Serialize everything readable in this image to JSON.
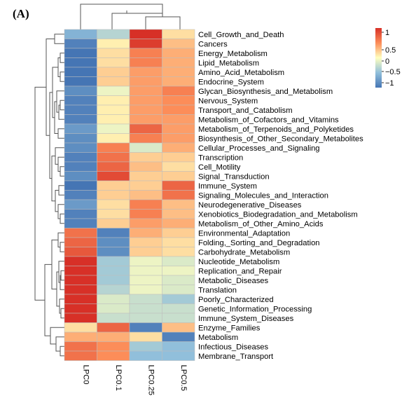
{
  "panel_label": "(A)",
  "chart_data": {
    "type": "heatmap",
    "columns": [
      "LPC0",
      "LPC0.1",
      "LPC0.25",
      "LPC0.5"
    ],
    "rows": [
      "Cell_Growth_and_Death",
      "Cancers",
      "Energy_Metabolism",
      "Lipid_Metabolism",
      "Amino_Acid_Metabolism",
      "Endocrine_System",
      "Glycan_Biosynthesis_and_Metabolism",
      "Nervous_System",
      "Transport_and_Catabolism",
      "Metabolism_of_Cofactors_and_Vitamins",
      "Metabolism_of_Terpenoids_and_Polyketides",
      "Biosynthesis_of_Other_Secondary_Metabolites",
      "Cellular_Processes_and_Signaling",
      "Transcription",
      "Cell_Motility",
      "Signal_Transduction",
      "Immune_System",
      "Signaling_Molecules_and_Interaction",
      "Neurodegenerative_Diseases",
      "Xenobiotics_Biodegradation_and_Metabolism",
      "Metabolism_of_Other_Amino_Acids",
      "Environmental_Adaptation",
      "Folding,_Sorting_and_Degradation",
      "Carbohydrate_Metabolism",
      "Nucleotide_Metabolism",
      "Replication_and_Repair",
      "Metabolic_Diseases",
      "Translation",
      "Poorly_Characterized",
      "Genetic_Information_Processing",
      "Immune_System_Diseases",
      "Enzyme_Families",
      "Metabolism",
      "Infectious_Diseases",
      "Membrane_Transport"
    ],
    "values": [
      [
        -0.7,
        -0.4,
        1.4,
        0.2
      ],
      [
        -1.1,
        0.1,
        1.3,
        0.4
      ],
      [
        -1.2,
        0.2,
        0.8,
        0.5
      ],
      [
        -1.2,
        0.2,
        0.8,
        0.5
      ],
      [
        -1.2,
        0.3,
        0.6,
        0.5
      ],
      [
        -1.2,
        0.3,
        0.6,
        0.5
      ],
      [
        -1.0,
        -0.1,
        0.6,
        0.8
      ],
      [
        -1.1,
        0.1,
        0.6,
        0.7
      ],
      [
        -1.1,
        0.1,
        0.6,
        0.7
      ],
      [
        -1.1,
        0.1,
        0.6,
        0.6
      ],
      [
        -0.9,
        -0.1,
        1.0,
        0.6
      ],
      [
        -1.0,
        0.1,
        0.8,
        0.6
      ],
      [
        -1.0,
        0.8,
        -0.2,
        0.5
      ],
      [
        -1.1,
        0.9,
        0.3,
        0.3
      ],
      [
        -1.1,
        1.0,
        0.4,
        0.2
      ],
      [
        -1.0,
        1.2,
        0.3,
        0.3
      ],
      [
        -1.2,
        0.3,
        0.3,
        1.0
      ],
      [
        -1.1,
        0.3,
        0.4,
        0.9
      ],
      [
        -0.9,
        0.2,
        0.8,
        0.4
      ],
      [
        -1.1,
        0.2,
        0.8,
        0.4
      ],
      [
        -1.1,
        0.3,
        0.6,
        0.5
      ],
      [
        0.9,
        -1.1,
        0.5,
        0.3
      ],
      [
        1.0,
        -1.0,
        0.3,
        0.2
      ],
      [
        1.1,
        -1.0,
        0.3,
        0.2
      ],
      [
        1.4,
        -0.5,
        -0.1,
        -0.2
      ],
      [
        1.4,
        -0.5,
        -0.1,
        -0.1
      ],
      [
        1.4,
        -0.5,
        -0.1,
        -0.2
      ],
      [
        1.4,
        -0.4,
        -0.1,
        -0.2
      ],
      [
        1.4,
        -0.2,
        -0.3,
        -0.5
      ],
      [
        1.4,
        -0.2,
        -0.3,
        -0.3
      ],
      [
        1.4,
        -0.3,
        -0.3,
        -0.3
      ],
      [
        0.2,
        1.0,
        -1.1,
        0.4
      ],
      [
        0.5,
        0.5,
        0.2,
        -1.1
      ],
      [
        0.9,
        0.7,
        -0.5,
        -0.6
      ],
      [
        0.9,
        0.7,
        -0.6,
        -0.6
      ]
    ],
    "color_scale": {
      "low": "#4575b4",
      "mid": "#ffffbf",
      "high": "#d73027",
      "ticks": [
        "1",
        "0.5",
        "0",
        "−0.5",
        "−1"
      ]
    }
  }
}
